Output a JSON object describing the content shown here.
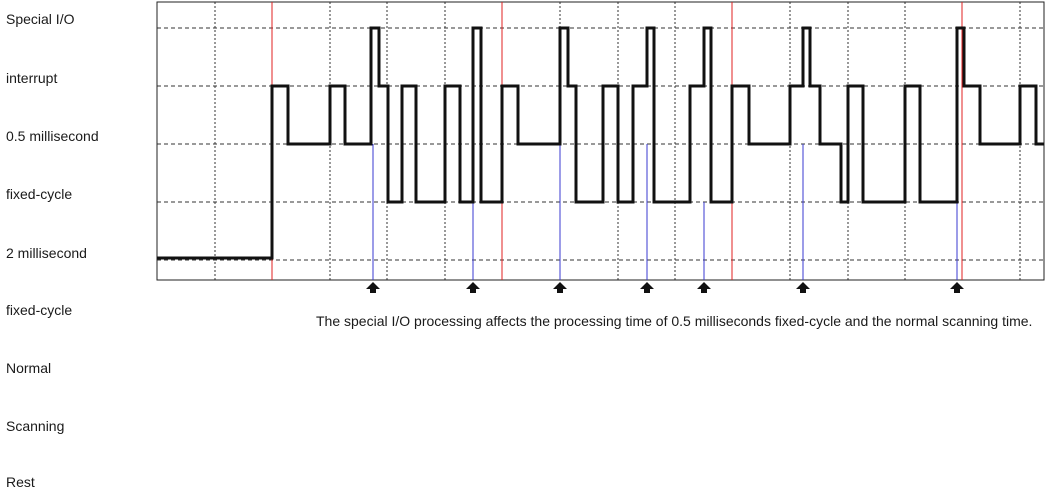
{
  "labels": [
    "Special I/O",
    "interrupt",
    "0.5 millisecond",
    "fixed-cycle",
    "2 millisecond",
    "fixed-cycle",
    "Normal",
    "Scanning",
    "Rest"
  ],
  "caption": "The special I/O processing affects the processing time of 0.5 milliseconds fixed-cycle and the normal scanning time.",
  "colors": {
    "grid": "#333333",
    "frame": "#222222",
    "trace": "#111111",
    "red_marker": "#e02020",
    "blue_marker": "#3a3ad0",
    "arrow": "#111111"
  }
}
